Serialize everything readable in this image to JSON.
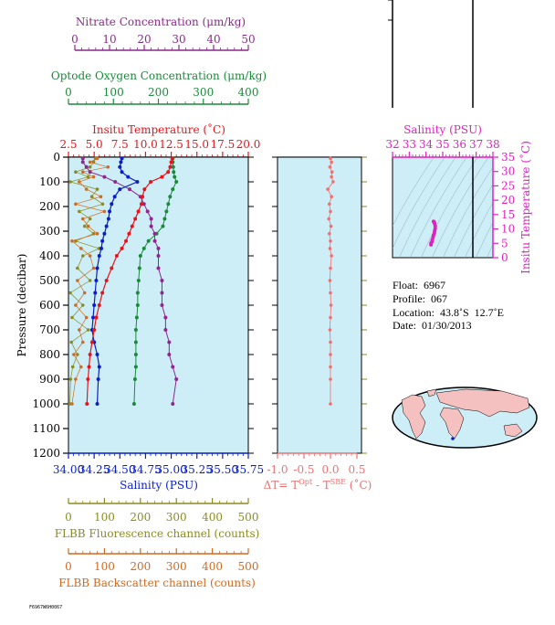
{
  "colors": {
    "panel_bg": "#cdeef7",
    "nitrate": "#8b2a8b",
    "oxygen": "#1a8a3a",
    "temperature": "#e8141c",
    "salinity": "#0a1ec8",
    "fluorescence": "#8b8b1e",
    "backscatter": "#d2691e",
    "ts_magenta": "#e020c0",
    "delta": "#f07070",
    "map_land": "#f4c0c0",
    "map_ocean": "#cdeef7"
  },
  "axes": {
    "nitrate": {
      "title": "Nitrate Concentration (μm/kg)",
      "ticks": [
        "0",
        "10",
        "20",
        "30",
        "40",
        "50"
      ],
      "range": [
        0,
        50
      ]
    },
    "oxygen": {
      "title": "Optode Oxygen Concentration (μm/kg)",
      "ticks": [
        "0",
        "100",
        "200",
        "300",
        "400"
      ],
      "range": [
        0,
        400
      ]
    },
    "temperature": {
      "title": "Insitu Temperature (˚C)",
      "ticks": [
        "2.5",
        "5.0",
        "7.5",
        "10.0",
        "12.5",
        "15.0",
        "17.5",
        "20.0"
      ],
      "range": [
        2.5,
        20.0
      ]
    },
    "pressure": {
      "title": "Pressure (decibar)",
      "ticks": [
        "0",
        "100",
        "200",
        "300",
        "400",
        "500",
        "600",
        "700",
        "800",
        "900",
        "1000",
        "1100",
        "1200"
      ],
      "range": [
        0,
        1200
      ]
    },
    "salinity": {
      "title": "Salinity (PSU)",
      "ticks": [
        "34.00",
        "34.25",
        "34.50",
        "34.75",
        "35.00",
        "35.25",
        "35.50",
        "35.75"
      ],
      "range": [
        34.0,
        35.75
      ]
    },
    "fluorescence": {
      "title": "FLBB Fluorescence channel (counts)",
      "ticks": [
        "0",
        "100",
        "200",
        "300",
        "400",
        "500"
      ],
      "range": [
        0,
        500
      ]
    },
    "backscatter": {
      "title": "FLBB Backscatter channel (counts)",
      "ticks": [
        "0",
        "100",
        "200",
        "300",
        "400",
        "500"
      ],
      "range": [
        0,
        500
      ]
    },
    "delta": {
      "title_prefix": "ΔT= T",
      "sup1": "Opt",
      "mid": " - T",
      "sup2": "SBE",
      "suffix": " (˚C)",
      "ticks": [
        "-1.0",
        "-0.5",
        "0.0",
        "0.5"
      ],
      "range": [
        -1.0,
        0.5
      ]
    },
    "ts_salinity": {
      "title": "Salinity (PSU)",
      "ticks": [
        "32",
        "33",
        "34",
        "35",
        "36",
        "37",
        "38"
      ],
      "range": [
        32,
        38
      ]
    },
    "ts_temperature": {
      "title": "Insitu Temperature (˚C)",
      "ticks": [
        "0",
        "5",
        "10",
        "15",
        "20",
        "25",
        "30",
        "35"
      ],
      "range": [
        0,
        35
      ]
    }
  },
  "info": {
    "float": "Float:  6967",
    "profile": "Profile:  067",
    "location": "Location:  43.8˚S  12.7˚E",
    "date": "Date:  01/30/2013"
  },
  "footer_code": "F6967W6H0067",
  "chart_data": [
    {
      "type": "line",
      "name": "Temperature",
      "x": [
        12.6,
        12.5,
        12.4,
        12.2,
        11.6,
        10.5,
        9.9,
        9.7,
        9.6,
        9.3,
        9.0,
        8.7,
        8.4,
        8.1,
        7.7,
        7.2,
        6.7,
        6.2,
        5.8,
        5.5,
        5.2,
        5.0,
        4.8,
        4.6,
        4.5,
        4.4,
        4.3
      ],
      "y": [
        5,
        20,
        40,
        60,
        80,
        100,
        130,
        160,
        190,
        220,
        250,
        280,
        310,
        340,
        370,
        400,
        450,
        500,
        550,
        600,
        650,
        700,
        750,
        800,
        850,
        900,
        1000
      ]
    },
    {
      "type": "line",
      "name": "Salinity",
      "x": [
        34.52,
        34.51,
        34.5,
        34.52,
        34.58,
        34.67,
        34.5,
        34.45,
        34.42,
        34.4,
        34.39,
        34.37,
        34.35,
        34.33,
        34.32,
        34.3,
        34.28,
        34.27,
        34.26,
        34.25,
        34.24,
        34.23,
        34.25,
        34.28,
        34.3,
        34.29,
        34.28
      ],
      "y": [
        5,
        20,
        40,
        60,
        80,
        100,
        130,
        160,
        190,
        220,
        250,
        280,
        310,
        340,
        370,
        400,
        450,
        500,
        550,
        600,
        650,
        700,
        750,
        800,
        850,
        900,
        1000
      ]
    },
    {
      "type": "line",
      "name": "Oxygen",
      "x": [
        232,
        232,
        233,
        234,
        236,
        240,
        232,
        226,
        222,
        218,
        214,
        210,
        196,
        178,
        168,
        160,
        158,
        156,
        154,
        154,
        152,
        150,
        150,
        150,
        150,
        148,
        146
      ],
      "y": [
        5,
        20,
        40,
        60,
        80,
        100,
        130,
        160,
        190,
        220,
        250,
        280,
        310,
        340,
        370,
        400,
        450,
        500,
        550,
        600,
        650,
        700,
        750,
        800,
        850,
        900,
        1000
      ]
    },
    {
      "type": "line",
      "name": "Nitrate",
      "x": [
        4,
        4,
        5,
        6,
        10,
        13,
        17,
        20,
        21,
        22,
        23,
        23,
        24,
        24,
        25,
        25,
        25,
        26,
        26,
        26,
        27,
        27,
        28,
        28,
        29,
        30,
        29
      ],
      "y": [
        5,
        20,
        40,
        60,
        80,
        100,
        130,
        160,
        190,
        220,
        250,
        280,
        310,
        340,
        370,
        400,
        450,
        500,
        550,
        600,
        650,
        700,
        750,
        800,
        850,
        900,
        1000
      ]
    },
    {
      "type": "line",
      "name": "Fluorescence",
      "x": [
        75,
        70,
        60,
        20,
        55,
        5,
        80,
        65,
        95,
        30,
        60,
        45,
        70,
        20,
        85,
        40,
        25,
        60,
        5,
        40,
        10,
        55,
        8,
        25,
        12,
        6,
        4
      ],
      "y": [
        5,
        20,
        40,
        60,
        80,
        100,
        130,
        160,
        190,
        220,
        250,
        280,
        310,
        340,
        370,
        400,
        450,
        500,
        550,
        600,
        650,
        700,
        750,
        800,
        850,
        900,
        1000
      ]
    },
    {
      "type": "line",
      "name": "Backscatter",
      "x": [
        80,
        60,
        110,
        40,
        70,
        30,
        50,
        90,
        20,
        100,
        40,
        55,
        80,
        10,
        35,
        60,
        70,
        25,
        45,
        20,
        50,
        30,
        40,
        15,
        35,
        20,
        10
      ],
      "y": [
        5,
        20,
        40,
        60,
        80,
        100,
        130,
        160,
        190,
        220,
        250,
        280,
        310,
        340,
        370,
        400,
        450,
        500,
        550,
        600,
        650,
        700,
        750,
        800,
        850,
        900,
        1000
      ]
    },
    {
      "type": "scatter",
      "name": "Delta T",
      "x": [
        0.0,
        0.02,
        -0.01,
        0.03,
        0.02,
        0.05,
        -0.05,
        0.02,
        -0.02,
        0.0,
        -0.03,
        0.01,
        -0.02,
        0.0,
        -0.01,
        0.02,
        0.0,
        -0.01,
        0.0,
        0.01,
        0.0,
        -0.01,
        0.0,
        0.0,
        0.0,
        0.0,
        0.0
      ],
      "y": [
        5,
        20,
        40,
        60,
        80,
        100,
        130,
        160,
        190,
        220,
        250,
        280,
        310,
        340,
        370,
        400,
        450,
        500,
        550,
        600,
        650,
        700,
        750,
        800,
        850,
        900,
        1000
      ]
    },
    {
      "type": "scatter",
      "name": "T-S",
      "x": [
        34.3,
        34.3,
        34.35,
        34.38,
        34.42,
        34.45,
        34.5,
        34.52,
        34.55,
        34.55,
        34.52,
        34.5,
        34.48,
        34.45
      ],
      "y": [
        4.5,
        5.0,
        5.5,
        6.2,
        7.0,
        7.8,
        8.6,
        9.4,
        10.2,
        11.0,
        11.8,
        12.2,
        12.5,
        12.6
      ]
    }
  ]
}
